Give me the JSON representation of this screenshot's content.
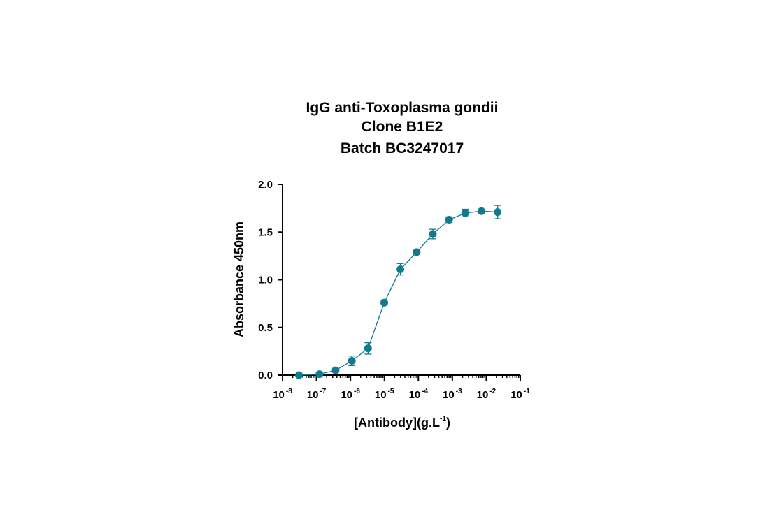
{
  "chart_data": {
    "type": "scatter",
    "title_lines": [
      "IgG anti-Toxoplasma gondii",
      "Clone B1E2",
      "Batch BC3247017"
    ],
    "xlabel": {
      "main": "[Antibody](g.L",
      "sup": "-1",
      "close": ")"
    },
    "ylabel": "Absorbance 450nm",
    "x_scale": "log10",
    "xlim": [
      1e-08,
      0.1
    ],
    "ylim": [
      0,
      2.0
    ],
    "y_ticks": [
      "0.0",
      "0.5",
      "1.0",
      "1.5",
      "2.0"
    ],
    "y_tick_values": [
      0,
      0.5,
      1.0,
      1.5,
      2.0
    ],
    "x_ticks": [
      {
        "base": "10",
        "exp": "-8",
        "value": 1e-08
      },
      {
        "base": "10",
        "exp": "-7",
        "value": 1e-07
      },
      {
        "base": "10",
        "exp": "-6",
        "value": 1e-06
      },
      {
        "base": "10",
        "exp": "-5",
        "value": 1e-05
      },
      {
        "base": "10",
        "exp": "-4",
        "value": 0.0001
      },
      {
        "base": "10",
        "exp": "-3",
        "value": 0.001
      },
      {
        "base": "10",
        "exp": "-2",
        "value": 0.01
      },
      {
        "base": "10",
        "exp": "-1",
        "value": 0.1
      }
    ],
    "grid": false,
    "series": [
      {
        "color": "#137a8d",
        "x": [
          3.05e-08,
          1.22e-07,
          3.66e-07,
          1.1e-06,
          3.3e-06,
          9.9e-06,
          2.96e-05,
          8.9e-05,
          0.000267,
          0.0008,
          0.0024,
          0.0072,
          0.0216
        ],
        "y": [
          0.0,
          0.01,
          0.05,
          0.15,
          0.28,
          0.76,
          1.11,
          1.29,
          1.48,
          1.63,
          1.7,
          1.72,
          1.71
        ],
        "err": [
          0.0,
          0.0,
          0.02,
          0.05,
          0.06,
          0.02,
          0.06,
          0.02,
          0.05,
          0.03,
          0.04,
          0.02,
          0.07
        ]
      }
    ]
  }
}
